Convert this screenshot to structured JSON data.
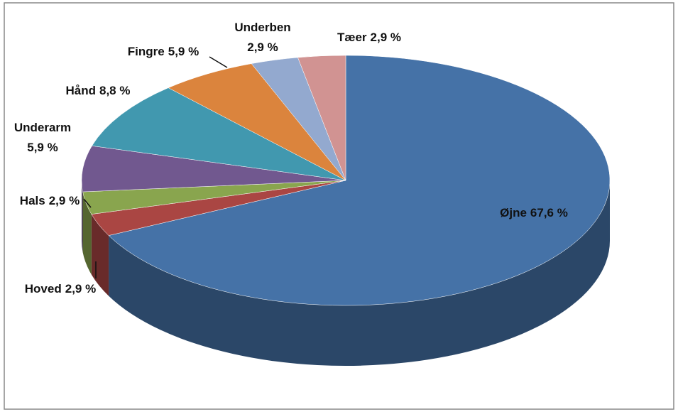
{
  "chart_data": {
    "type": "pie",
    "categories": [
      "Øjne",
      "Hoved",
      "Hals",
      "Underarm",
      "Hånd",
      "Fingre",
      "Underben",
      "Tæer"
    ],
    "values": [
      67.6,
      2.9,
      2.9,
      5.9,
      8.8,
      5.9,
      2.9,
      2.9
    ],
    "value_labels": [
      "67,6 %",
      "2,9 %",
      "2,9 %",
      "5,9 %",
      "8,8 %",
      "5,9 %",
      "2,9 %",
      "2,9 %"
    ],
    "colors": [
      "#4572a7",
      "#aa4643",
      "#89a54e",
      "#71588f",
      "#4198af",
      "#db843d",
      "#93a9cf",
      "#d19392"
    ]
  }
}
